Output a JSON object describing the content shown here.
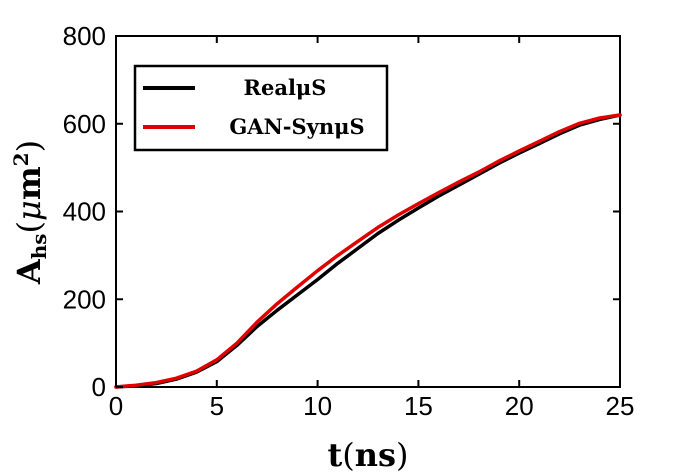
{
  "chart_data": {
    "type": "line",
    "xlabel": {
      "main": "t",
      "paren_open": "(",
      "unit": "ns",
      "paren_close": ")"
    },
    "ylabel": {
      "main": "A",
      "sub": "hs",
      "paren_open": "(",
      "mu": "μ",
      "m": "m",
      "exp": "2",
      "paren_close": ")"
    },
    "xlim": [
      0,
      25
    ],
    "ylim": [
      0,
      800
    ],
    "xticks": [
      0,
      5,
      10,
      15,
      20,
      25
    ],
    "yticks": [
      0,
      200,
      400,
      600,
      800
    ],
    "grid": false,
    "legend_position": "top-left",
    "series": [
      {
        "name": "RealμS",
        "color": "#000000",
        "x": [
          0,
          1,
          2,
          3,
          4,
          5,
          6,
          7,
          8,
          9,
          10,
          11,
          12,
          13,
          14,
          15,
          16,
          17,
          18,
          19,
          20,
          21,
          22,
          23,
          24,
          25
        ],
        "y": [
          0,
          3,
          8,
          18,
          34,
          58,
          95,
          138,
          175,
          210,
          245,
          282,
          316,
          350,
          380,
          408,
          435,
          460,
          485,
          510,
          533,
          555,
          577,
          597,
          610,
          620
        ]
      },
      {
        "name": "GAN-SynμS",
        "color": "#e00000",
        "x": [
          0,
          1,
          2,
          3,
          4,
          5,
          6,
          7,
          8,
          9,
          10,
          11,
          12,
          13,
          14,
          15,
          16,
          17,
          18,
          19,
          20,
          21,
          22,
          23,
          24,
          25
        ],
        "y": [
          0,
          4,
          10,
          20,
          36,
          62,
          100,
          148,
          190,
          228,
          265,
          300,
          332,
          364,
          392,
          418,
          443,
          467,
          490,
          515,
          538,
          560,
          582,
          601,
          613,
          620
        ]
      }
    ]
  }
}
